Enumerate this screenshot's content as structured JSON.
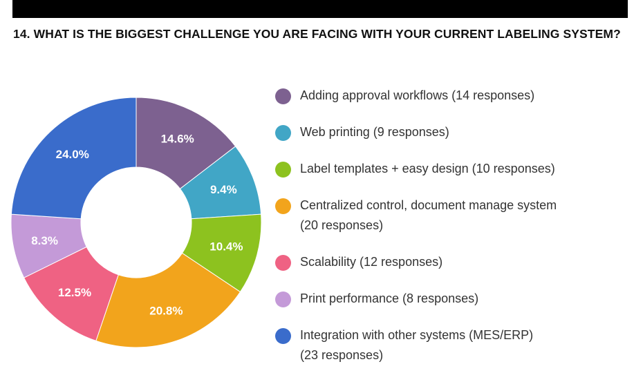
{
  "title": "14. WHAT IS THE BIGGEST CHALLENGE YOU ARE FACING WITH YOUR CURRENT LABELING SYSTEM?",
  "chart_data": {
    "type": "pie",
    "style": "donut",
    "categories": [
      "Adding approval workflows",
      "Web printing",
      "Label templates + easy design",
      "Centralized control, document manage system",
      "Scalability",
      "Print performance",
      "Integration with other systems (MES/ERP)"
    ],
    "values": [
      14,
      9,
      10,
      20,
      12,
      8,
      23
    ],
    "percent_labels": [
      "14.6%",
      "9.4%",
      "10.4%",
      "20.8%",
      "12.5%",
      "8.3%",
      "24.0%"
    ],
    "colors": [
      "#7d6190",
      "#41a6c6",
      "#8dc21f",
      "#f2a41c",
      "#ef6283",
      "#c49ad8",
      "#3a6ccb"
    ],
    "legend_placement": "right"
  },
  "legend": [
    {
      "lines": [
        "Adding approval workflows (14 responses)"
      ]
    },
    {
      "lines": [
        "Web printing (9 responses)"
      ]
    },
    {
      "lines": [
        "Label templates + easy design (10 responses)"
      ]
    },
    {
      "lines": [
        "Centralized control, document manage system",
        "(20 responses)"
      ]
    },
    {
      "lines": [
        "Scalability (12 responses)"
      ]
    },
    {
      "lines": [
        "Print performance (8 responses)"
      ]
    },
    {
      "lines": [
        "Integration with other systems (MES/ERP)",
        "(23 responses)"
      ]
    }
  ]
}
